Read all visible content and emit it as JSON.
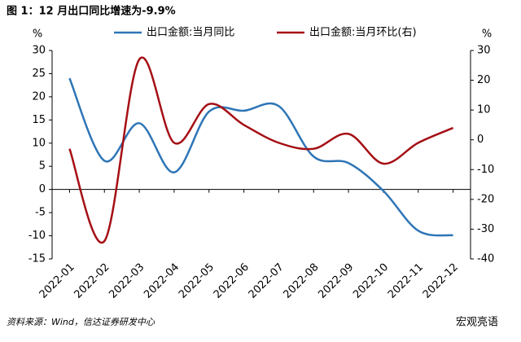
{
  "chart_data": {
    "type": "line",
    "title": "图 1：12 月出口同比增速为-9.9%",
    "y_label": "%",
    "y2_label": "%",
    "categories": [
      "2022-01",
      "2022-02",
      "2022-03",
      "2022-04",
      "2022-05",
      "2022-06",
      "2022-07",
      "2022-08",
      "2022-09",
      "2022-10",
      "2022-11",
      "2022-12"
    ],
    "series": [
      {
        "name": "出口金额:当月同比",
        "color": "#2e75b6",
        "values": [
          24,
          6.2,
          14.3,
          3.7,
          16.8,
          17,
          18,
          7.1,
          5.7,
          -0.3,
          -8.9,
          -9.9
        ]
      },
      {
        "name": "出口金额:当月环比(右)",
        "color": "#a50f15",
        "axis": "y2",
        "values": [
          -3,
          -34,
          27,
          -1,
          12,
          5,
          -1,
          -3,
          2,
          -8,
          -1,
          4
        ]
      }
    ],
    "ylim": [
      -15,
      30
    ],
    "yticks": [
      -15,
      -10,
      -5,
      0,
      5,
      10,
      15,
      20,
      25,
      30
    ],
    "y2lim": [
      -40,
      30
    ],
    "y2ticks": [
      -40,
      -30,
      -20,
      -10,
      0,
      10,
      20,
      30
    ],
    "legend": "top",
    "source": "资料来源：Wind，信达证券研发中心",
    "watermark": "宏观亮语"
  }
}
